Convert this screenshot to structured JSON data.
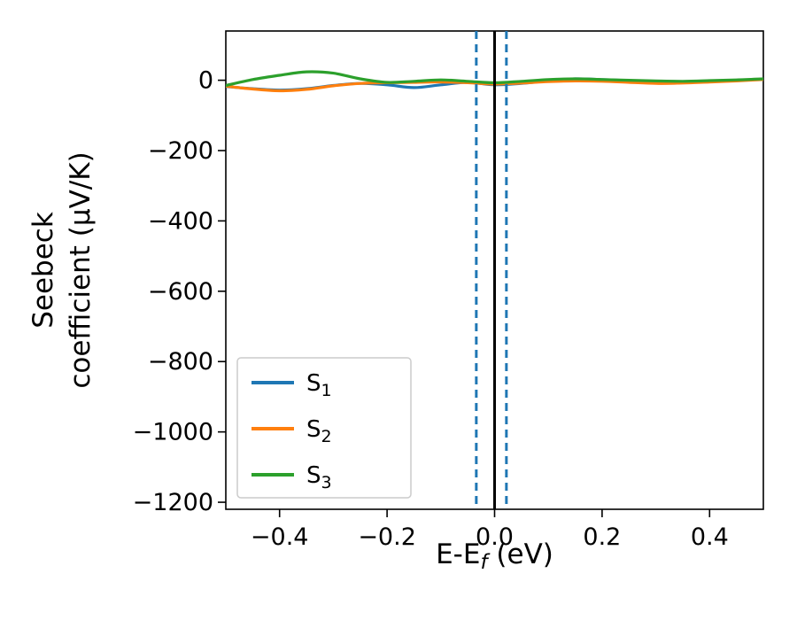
{
  "chart_data": {
    "type": "line",
    "title": "",
    "xlabel_main": "E-E",
    "xlabel_sub": "f",
    "xlabel_unit": " (eV)",
    "ylabel_line1": "Seebeck",
    "ylabel_line2": "coefficient  (μV/K)",
    "xlim": [
      -0.5,
      0.5
    ],
    "ylim": [
      -1220,
      140
    ],
    "grid": false,
    "legend_loc": "lower left",
    "x_ticks": {
      "values": [
        -0.4,
        -0.2,
        0.0,
        0.2,
        0.4
      ],
      "labels": [
        "−0.4",
        "−0.2",
        "0.0",
        "0.2",
        "0.4"
      ]
    },
    "y_ticks": {
      "values": [
        0,
        -200,
        -400,
        -600,
        -800,
        -1000,
        -1200
      ],
      "labels": [
        "0",
        "−200",
        "−400",
        "−600",
        "−800",
        "−1000",
        "−1200"
      ]
    },
    "x": [
      -0.5,
      -0.45,
      -0.4,
      -0.35,
      -0.3,
      -0.25,
      -0.2,
      -0.15,
      -0.1,
      -0.05,
      0.0,
      0.05,
      0.1,
      0.15,
      0.2,
      0.25,
      0.3,
      0.35,
      0.4,
      0.45,
      0.5
    ],
    "series": [
      {
        "name_main": "S",
        "name_sub": "1",
        "color": "#1f77b4",
        "values": [
          -18,
          -24,
          -28,
          -24,
          -15,
          -9,
          -13,
          -21,
          -13,
          -6,
          -13,
          -9,
          -2,
          4,
          2,
          -1,
          -4,
          -5,
          -3,
          0,
          3
        ]
      },
      {
        "name_main": "S",
        "name_sub": "2",
        "color": "#ff7f0e",
        "values": [
          -17,
          -25,
          -30,
          -26,
          -16,
          -9,
          -7,
          -6,
          -5,
          -7,
          -11,
          -8,
          -4,
          -2,
          -3,
          -6,
          -9,
          -8,
          -5,
          -2,
          2
        ]
      },
      {
        "name_main": "S",
        "name_sub": "3",
        "color": "#2ca02c",
        "values": [
          -15,
          2,
          14,
          24,
          20,
          4,
          -6,
          -3,
          1,
          -3,
          -7,
          -3,
          2,
          4,
          2,
          0,
          -2,
          -3,
          -1,
          1,
          4
        ]
      }
    ],
    "vlines": [
      {
        "x": -0.034,
        "style": "dashed",
        "color": "#1f77b4"
      },
      {
        "x": 0.022,
        "style": "dashed",
        "color": "#1f77b4"
      },
      {
        "x": 0.0,
        "style": "solid",
        "color": "#000000"
      }
    ]
  }
}
